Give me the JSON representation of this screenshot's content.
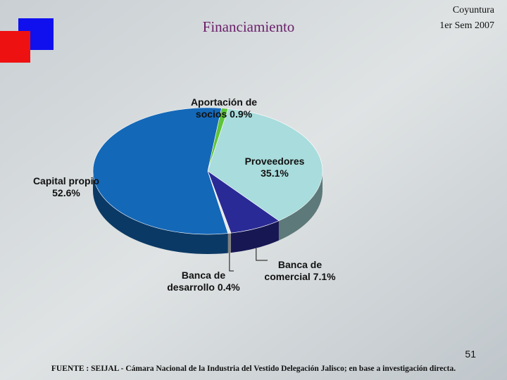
{
  "chart_data": {
    "type": "pie",
    "title": "Financiamiento",
    "subtitle": [
      "Coyuntura",
      "1er Sem 2007"
    ],
    "categories": [
      "Aportación de socios",
      "Proveedores",
      "Banca de comercial",
      "Banca de desarrollo",
      "Capital propio"
    ],
    "values": [
      0.9,
      35.1,
      7.1,
      0.4,
      52.6
    ],
    "value_labels": [
      "0.9%",
      "35.1%",
      "7.1%",
      "0.4%",
      "52.6%"
    ],
    "colors": [
      "#5fc43a",
      "#a9dcdc",
      "#2a2a96",
      "#e8e8e8",
      "#1468b8"
    ]
  },
  "page_number": "51",
  "source": "FUENTE : SEIJAL - Cámara Nacional de la Industria del Vestido Delegación Jalisco; en base a investigación directa."
}
